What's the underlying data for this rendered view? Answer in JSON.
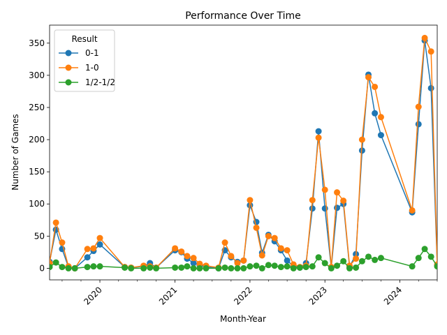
{
  "chart_data": {
    "type": "line",
    "title": "Performance Over Time",
    "xlabel": "Month-Year",
    "ylabel": "Number of Games",
    "xlim": [
      "2019-05-01",
      "2024-07-01"
    ],
    "ylim": [
      -18,
      378
    ],
    "yticks": [
      0,
      50,
      100,
      150,
      200,
      250,
      300,
      350
    ],
    "xticks": [
      "2020-01-01",
      "2021-01-01",
      "2022-01-01",
      "2023-01-01",
      "2024-01-01"
    ],
    "xtick_labels": [
      "2020",
      "2021",
      "2022",
      "2023",
      "2024"
    ],
    "legend": {
      "title": "Result",
      "position": "top-left"
    },
    "series": [
      {
        "name": "0-1",
        "color": "#1f77b4",
        "points": [
          [
            "2019-05-01",
            10
          ],
          [
            "2019-06-01",
            60
          ],
          [
            "2019-07-01",
            30
          ],
          [
            "2019-08-01",
            2
          ],
          [
            "2019-09-01",
            0
          ],
          [
            "2019-11-01",
            17
          ],
          [
            "2019-12-01",
            27
          ],
          [
            "2020-01-01",
            37
          ],
          [
            "2020-05-01",
            2
          ],
          [
            "2020-06-01",
            1
          ],
          [
            "2020-08-01",
            3
          ],
          [
            "2020-09-01",
            8
          ],
          [
            "2020-10-01",
            1
          ],
          [
            "2021-01-01",
            28
          ],
          [
            "2021-02-01",
            25
          ],
          [
            "2021-03-01",
            15
          ],
          [
            "2021-04-01",
            8
          ],
          [
            "2021-05-01",
            5
          ],
          [
            "2021-06-01",
            2
          ],
          [
            "2021-08-01",
            0
          ],
          [
            "2021-09-01",
            28
          ],
          [
            "2021-10-01",
            17
          ],
          [
            "2021-11-01",
            10
          ],
          [
            "2021-12-01",
            12
          ],
          [
            "2022-01-01",
            98
          ],
          [
            "2022-02-01",
            72
          ],
          [
            "2022-03-01",
            24
          ],
          [
            "2022-04-01",
            52
          ],
          [
            "2022-05-01",
            42
          ],
          [
            "2022-06-01",
            28
          ],
          [
            "2022-07-01",
            12
          ],
          [
            "2022-08-01",
            3
          ],
          [
            "2022-09-01",
            1
          ],
          [
            "2022-10-01",
            8
          ],
          [
            "2022-11-01",
            93
          ],
          [
            "2022-12-01",
            213
          ],
          [
            "2023-01-01",
            93
          ],
          [
            "2023-02-01",
            1
          ],
          [
            "2023-03-01",
            94
          ],
          [
            "2023-04-01",
            100
          ],
          [
            "2023-05-01",
            2
          ],
          [
            "2023-06-01",
            22
          ],
          [
            "2023-07-01",
            183
          ],
          [
            "2023-08-01",
            301
          ],
          [
            "2023-09-01",
            241
          ],
          [
            "2023-10-01",
            207
          ],
          [
            "2024-03-01",
            87
          ],
          [
            "2024-04-01",
            224
          ],
          [
            "2024-05-01",
            354
          ],
          [
            "2024-06-01",
            280
          ],
          [
            "2024-07-01",
            5
          ]
        ]
      },
      {
        "name": "1-0",
        "color": "#ff7f0e",
        "points": [
          [
            "2019-05-01",
            8
          ],
          [
            "2019-06-01",
            71
          ],
          [
            "2019-07-01",
            40
          ],
          [
            "2019-08-01",
            3
          ],
          [
            "2019-09-01",
            0
          ],
          [
            "2019-11-01",
            30
          ],
          [
            "2019-12-01",
            31
          ],
          [
            "2020-01-01",
            47
          ],
          [
            "2020-05-01",
            2
          ],
          [
            "2020-06-01",
            1
          ],
          [
            "2020-08-01",
            4
          ],
          [
            "2020-09-01",
            3
          ],
          [
            "2020-10-01",
            1
          ],
          [
            "2021-01-01",
            31
          ],
          [
            "2021-02-01",
            26
          ],
          [
            "2021-03-01",
            19
          ],
          [
            "2021-04-01",
            16
          ],
          [
            "2021-05-01",
            7
          ],
          [
            "2021-06-01",
            4
          ],
          [
            "2021-08-01",
            1
          ],
          [
            "2021-09-01",
            40
          ],
          [
            "2021-10-01",
            19
          ],
          [
            "2021-11-01",
            8
          ],
          [
            "2021-12-01",
            12
          ],
          [
            "2022-01-01",
            106
          ],
          [
            "2022-02-01",
            63
          ],
          [
            "2022-03-01",
            20
          ],
          [
            "2022-04-01",
            50
          ],
          [
            "2022-05-01",
            47
          ],
          [
            "2022-06-01",
            31
          ],
          [
            "2022-07-01",
            28
          ],
          [
            "2022-08-01",
            6
          ],
          [
            "2022-09-01",
            2
          ],
          [
            "2022-10-01",
            4
          ],
          [
            "2022-11-01",
            106
          ],
          [
            "2022-12-01",
            203
          ],
          [
            "2023-01-01",
            122
          ],
          [
            "2023-02-01",
            2
          ],
          [
            "2023-03-01",
            118
          ],
          [
            "2023-04-01",
            105
          ],
          [
            "2023-05-01",
            4
          ],
          [
            "2023-06-01",
            15
          ],
          [
            "2023-07-01",
            200
          ],
          [
            "2023-08-01",
            297
          ],
          [
            "2023-09-01",
            282
          ],
          [
            "2023-10-01",
            235
          ],
          [
            "2024-03-01",
            90
          ],
          [
            "2024-04-01",
            251
          ],
          [
            "2024-05-01",
            358
          ],
          [
            "2024-06-01",
            337
          ],
          [
            "2024-07-01",
            6
          ]
        ]
      },
      {
        "name": "1/2-1/2",
        "color": "#2ca02c",
        "points": [
          [
            "2019-05-01",
            2
          ],
          [
            "2019-06-01",
            9
          ],
          [
            "2019-07-01",
            2
          ],
          [
            "2019-08-01",
            0
          ],
          [
            "2019-09-01",
            0
          ],
          [
            "2019-11-01",
            2
          ],
          [
            "2019-12-01",
            3
          ],
          [
            "2020-01-01",
            3
          ],
          [
            "2020-05-01",
            1
          ],
          [
            "2020-06-01",
            0
          ],
          [
            "2020-08-01",
            0
          ],
          [
            "2020-09-01",
            1
          ],
          [
            "2020-10-01",
            0
          ],
          [
            "2021-01-01",
            1
          ],
          [
            "2021-02-01",
            1
          ],
          [
            "2021-03-01",
            3
          ],
          [
            "2021-04-01",
            0
          ],
          [
            "2021-05-01",
            0
          ],
          [
            "2021-06-01",
            0
          ],
          [
            "2021-08-01",
            0
          ],
          [
            "2021-09-01",
            1
          ],
          [
            "2021-10-01",
            0
          ],
          [
            "2021-11-01",
            0
          ],
          [
            "2021-12-01",
            0
          ],
          [
            "2022-01-01",
            3
          ],
          [
            "2022-02-01",
            4
          ],
          [
            "2022-03-01",
            0
          ],
          [
            "2022-04-01",
            5
          ],
          [
            "2022-05-01",
            4
          ],
          [
            "2022-06-01",
            2
          ],
          [
            "2022-07-01",
            3
          ],
          [
            "2022-08-01",
            0
          ],
          [
            "2022-09-01",
            1
          ],
          [
            "2022-10-01",
            2
          ],
          [
            "2022-11-01",
            3
          ],
          [
            "2022-12-01",
            17
          ],
          [
            "2023-01-01",
            8
          ],
          [
            "2023-02-01",
            0
          ],
          [
            "2023-03-01",
            4
          ],
          [
            "2023-04-01",
            11
          ],
          [
            "2023-05-01",
            0
          ],
          [
            "2023-06-01",
            1
          ],
          [
            "2023-07-01",
            11
          ],
          [
            "2023-08-01",
            18
          ],
          [
            "2023-09-01",
            13
          ],
          [
            "2023-10-01",
            16
          ],
          [
            "2024-03-01",
            3
          ],
          [
            "2024-04-01",
            16
          ],
          [
            "2024-05-01",
            30
          ],
          [
            "2024-06-01",
            18
          ],
          [
            "2024-07-01",
            3
          ]
        ]
      }
    ]
  }
}
